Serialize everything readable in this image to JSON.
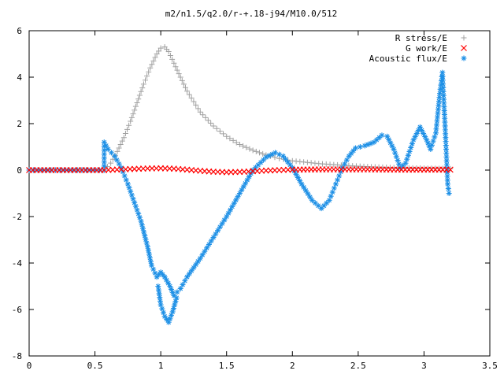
{
  "chart_data": {
    "type": "scatter",
    "title": "m2/n1.5/q2.0/r-+.18-j94/M10.0/512",
    "xlabel": "",
    "ylabel": "",
    "xlim": [
      0,
      3.5
    ],
    "ylim": [
      -8,
      6
    ],
    "x_ticks": [
      "0",
      "0.5",
      "1",
      "1.5",
      "2",
      "2.5",
      "3",
      "3.5"
    ],
    "y_ticks": [
      "6",
      "4",
      "2",
      "0",
      "-2",
      "-4",
      "-6",
      "-8"
    ],
    "grid": false,
    "legend_position": "top-right",
    "series": [
      {
        "name": "R stress/E",
        "color": "#a0a0a0",
        "marker": "plus",
        "points": [
          [
            0.0,
            0.0
          ],
          [
            0.1,
            0.0
          ],
          [
            0.2,
            0.0
          ],
          [
            0.3,
            0.0
          ],
          [
            0.4,
            0.0
          ],
          [
            0.5,
            0.0
          ],
          [
            0.57,
            0.0
          ],
          [
            0.62,
            0.3
          ],
          [
            0.67,
            0.8
          ],
          [
            0.72,
            1.4
          ],
          [
            0.77,
            2.1
          ],
          [
            0.82,
            2.9
          ],
          [
            0.87,
            3.7
          ],
          [
            0.92,
            4.4
          ],
          [
            0.97,
            5.0
          ],
          [
            1.0,
            5.25
          ],
          [
            1.03,
            5.3
          ],
          [
            1.06,
            5.1
          ],
          [
            1.1,
            4.6
          ],
          [
            1.15,
            4.0
          ],
          [
            1.2,
            3.4
          ],
          [
            1.3,
            2.5
          ],
          [
            1.4,
            1.9
          ],
          [
            1.5,
            1.45
          ],
          [
            1.6,
            1.1
          ],
          [
            1.7,
            0.85
          ],
          [
            1.8,
            0.65
          ],
          [
            1.9,
            0.5
          ],
          [
            2.0,
            0.4
          ],
          [
            2.2,
            0.28
          ],
          [
            2.4,
            0.2
          ],
          [
            2.6,
            0.14
          ],
          [
            2.8,
            0.1
          ],
          [
            3.0,
            0.08
          ],
          [
            3.2,
            0.06
          ]
        ]
      },
      {
        "name": "G work/E",
        "color": "#ff0000",
        "marker": "cross",
        "points": [
          [
            0.0,
            0.0
          ],
          [
            0.2,
            0.0
          ],
          [
            0.4,
            0.0
          ],
          [
            0.57,
            0.0
          ],
          [
            0.7,
            0.03
          ],
          [
            0.8,
            0.05
          ],
          [
            0.9,
            0.07
          ],
          [
            1.0,
            0.08
          ],
          [
            1.1,
            0.06
          ],
          [
            1.2,
            0.02
          ],
          [
            1.3,
            -0.03
          ],
          [
            1.4,
            -0.07
          ],
          [
            1.5,
            -0.09
          ],
          [
            1.6,
            -0.08
          ],
          [
            1.7,
            -0.05
          ],
          [
            1.8,
            -0.02
          ],
          [
            1.9,
            0.0
          ],
          [
            2.0,
            0.02
          ],
          [
            2.2,
            0.03
          ],
          [
            2.4,
            0.03
          ],
          [
            2.6,
            0.03
          ],
          [
            2.8,
            0.02
          ],
          [
            3.0,
            0.02
          ],
          [
            3.2,
            0.02
          ]
        ]
      },
      {
        "name": "Acoustic flux/E",
        "color": "#1e90e6",
        "marker": "star",
        "points": [
          [
            0.0,
            0.0
          ],
          [
            0.1,
            0.0
          ],
          [
            0.2,
            0.0
          ],
          [
            0.3,
            0.0
          ],
          [
            0.4,
            0.0
          ],
          [
            0.5,
            0.0
          ],
          [
            0.57,
            0.0
          ],
          [
            0.57,
            1.2
          ],
          [
            0.6,
            0.9
          ],
          [
            0.65,
            0.6
          ],
          [
            0.7,
            0.1
          ],
          [
            0.75,
            -0.6
          ],
          [
            0.8,
            -1.4
          ],
          [
            0.85,
            -2.2
          ],
          [
            0.9,
            -3.3
          ],
          [
            0.93,
            -4.1
          ],
          [
            0.97,
            -4.6
          ],
          [
            1.0,
            -4.4
          ],
          [
            1.03,
            -4.6
          ],
          [
            1.07,
            -5.0
          ],
          [
            1.1,
            -5.4
          ],
          [
            1.15,
            -5.1
          ],
          [
            1.2,
            -4.6
          ],
          [
            1.3,
            -3.8
          ],
          [
            1.4,
            -2.9
          ],
          [
            1.5,
            -2.0
          ],
          [
            1.6,
            -1.0
          ],
          [
            1.7,
            0.0
          ],
          [
            1.8,
            0.55
          ],
          [
            1.87,
            0.75
          ],
          [
            1.93,
            0.6
          ],
          [
            2.0,
            0.1
          ],
          [
            2.07,
            -0.6
          ],
          [
            2.15,
            -1.3
          ],
          [
            2.22,
            -1.65
          ],
          [
            2.28,
            -1.3
          ],
          [
            2.33,
            -0.6
          ],
          [
            2.38,
            0.1
          ],
          [
            2.43,
            0.6
          ],
          [
            2.48,
            0.95
          ],
          [
            2.55,
            1.05
          ],
          [
            2.62,
            1.2
          ],
          [
            2.68,
            1.5
          ],
          [
            2.72,
            1.45
          ],
          [
            2.77,
            0.9
          ],
          [
            2.82,
            0.1
          ],
          [
            2.86,
            0.3
          ],
          [
            2.92,
            1.3
          ],
          [
            2.97,
            1.85
          ],
          [
            3.02,
            1.3
          ],
          [
            3.05,
            0.9
          ],
          [
            3.09,
            1.6
          ],
          [
            3.12,
            3.3
          ],
          [
            3.14,
            4.2
          ],
          [
            3.16,
            1.9
          ],
          [
            3.18,
            -0.6
          ],
          [
            3.19,
            -1.0
          ]
        ]
      },
      {
        "name": "",
        "color": "#1e90e6",
        "marker": "star",
        "points": [
          [
            0.98,
            -5.0
          ],
          [
            1.0,
            -5.8
          ],
          [
            1.03,
            -6.3
          ],
          [
            1.06,
            -6.55
          ],
          [
            1.09,
            -6.1
          ],
          [
            1.12,
            -5.5
          ]
        ]
      }
    ]
  }
}
